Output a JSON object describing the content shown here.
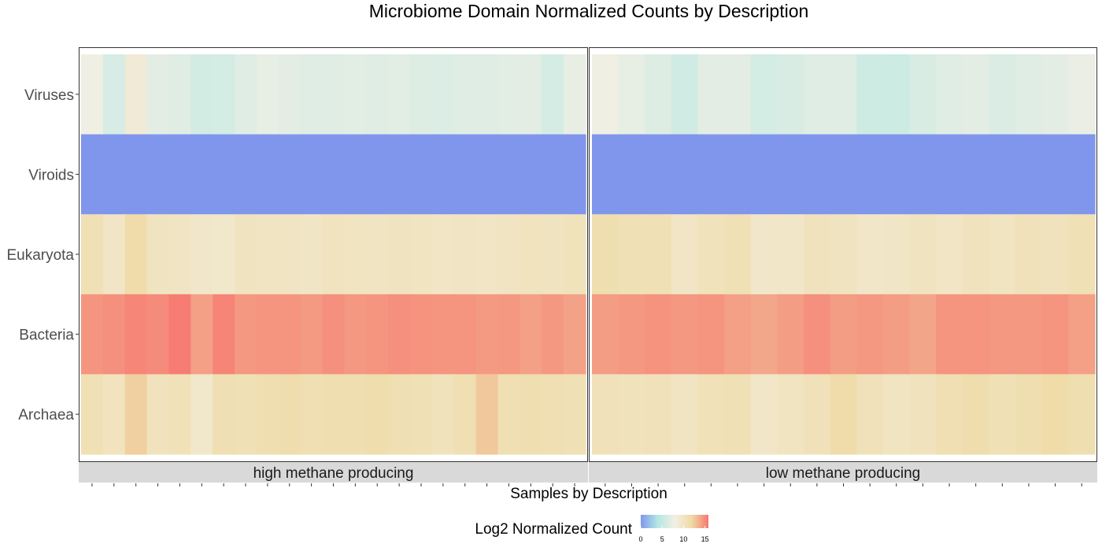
{
  "chart_data": {
    "type": "heatmap",
    "title": "Microbiome Domain Normalized Counts by Description",
    "xlabel": "Samples by Description",
    "ylabel": "",
    "rows": [
      "Viruses",
      "Viroids",
      "Eukaryota",
      "Bacteria",
      "Archaea"
    ],
    "facets": [
      {
        "label": "high methane producing",
        "samples": 23,
        "values": {
          "Viruses": [
            7.8,
            6.2,
            8.8,
            7.0,
            6.8,
            5.9,
            6.0,
            6.7,
            7.2,
            7.0,
            6.8,
            6.8,
            6.9,
            6.8,
            6.9,
            6.6,
            6.5,
            6.7,
            6.8,
            6.9,
            7.0,
            6.1,
            7.3
          ],
          "Viroids": [
            0,
            0,
            0,
            0,
            0,
            0,
            0,
            0,
            0,
            0,
            0,
            0,
            0,
            0,
            0,
            0,
            0,
            0,
            0,
            0,
            0,
            0,
            0
          ],
          "Eukaryota": [
            10.8,
            9.8,
            11.6,
            10.2,
            10.0,
            9.6,
            9.5,
            10.2,
            10.0,
            10.0,
            9.9,
            10.3,
            10.1,
            10.0,
            10.2,
            10.1,
            9.8,
            10.0,
            9.8,
            10.0,
            10.3,
            10.2,
            10.5
          ],
          "Bacteria": [
            14.6,
            14.8,
            15.2,
            15.0,
            15.6,
            14.2,
            15.3,
            14.5,
            14.6,
            14.6,
            14.4,
            14.8,
            14.5,
            14.6,
            14.8,
            14.7,
            14.6,
            14.6,
            14.4,
            14.5,
            14.2,
            14.5,
            14.1
          ],
          "Archaea": [
            10.9,
            10.3,
            12.3,
            10.4,
            10.7,
            9.5,
            11.0,
            10.8,
            11.2,
            11.4,
            11.1,
            11.3,
            11.2,
            11.4,
            11.1,
            10.9,
            10.5,
            11.0,
            12.6,
            11.1,
            11.3,
            11.0,
            10.8
          ]
        }
      },
      {
        "label": "low methane producing",
        "samples": 19,
        "values": {
          "Viruses": [
            7.8,
            7.2,
            6.6,
            5.8,
            7.0,
            7.0,
            6.0,
            6.3,
            6.8,
            6.7,
            5.7,
            5.5,
            6.3,
            6.8,
            7.0,
            6.4,
            6.7,
            7.0,
            7.4
          ],
          "Viroids": [
            0,
            0,
            0,
            0,
            0,
            0,
            0,
            0,
            0,
            0,
            0,
            0,
            0,
            0,
            0,
            0,
            0,
            0,
            0
          ],
          "Eukaryota": [
            11.3,
            10.8,
            10.9,
            9.8,
            10.5,
            10.9,
            9.6,
            9.7,
            10.4,
            10.2,
            9.7,
            9.9,
            10.2,
            9.8,
            10.4,
            10.1,
            10.6,
            10.4,
            10.9
          ],
          "Bacteria": [
            14.3,
            14.5,
            14.7,
            14.5,
            14.6,
            14.2,
            13.9,
            14.3,
            14.8,
            14.3,
            14.5,
            14.3,
            14.0,
            14.6,
            14.6,
            14.5,
            14.5,
            14.6,
            14.2
          ],
          "Archaea": [
            10.6,
            10.5,
            10.6,
            10.0,
            10.7,
            10.8,
            9.7,
            10.1,
            10.6,
            11.6,
            10.6,
            10.1,
            10.4,
            11.1,
            11.4,
            10.9,
            11.2,
            11.7,
            11.2
          ]
        }
      }
    ],
    "legend": {
      "title": "Log2 Normalized Count",
      "ticks": [
        "0",
        "5",
        "10",
        "15"
      ],
      "tick_values": [
        0,
        5,
        10,
        15
      ],
      "min": 0,
      "max": 15.8,
      "colors": [
        "#8096ed",
        "#b2e8e3",
        "#f2efe4",
        "#efdba6",
        "#f77770"
      ],
      "position": "bottom"
    },
    "grid": false
  }
}
